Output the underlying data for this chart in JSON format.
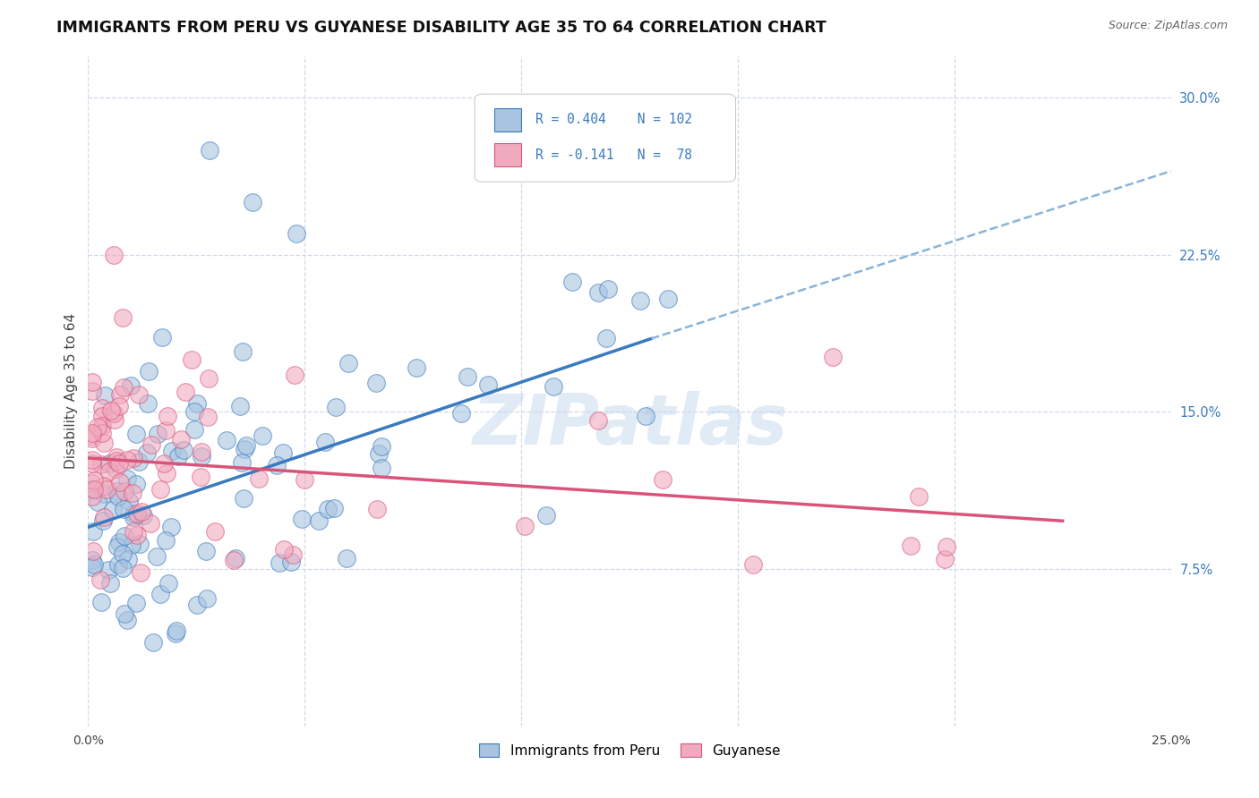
{
  "title": "IMMIGRANTS FROM PERU VS GUYANESE DISABILITY AGE 35 TO 64 CORRELATION CHART",
  "source": "Source: ZipAtlas.com",
  "ylabel": "Disability Age 35 to 64",
  "xlim": [
    0.0,
    0.25
  ],
  "ylim": [
    0.0,
    0.32
  ],
  "x_tick_positions": [
    0.0,
    0.05,
    0.1,
    0.15,
    0.2,
    0.25
  ],
  "x_tick_labels": [
    "0.0%",
    "",
    "",
    "",
    "",
    "25.0%"
  ],
  "y_ticks": [
    0.075,
    0.15,
    0.225,
    0.3
  ],
  "y_tick_labels": [
    "7.5%",
    "15.0%",
    "22.5%",
    "30.0%"
  ],
  "color_peru": "#a8c4e0",
  "color_guyanese": "#f0aabe",
  "color_peru_line": "#3a7abf",
  "color_guyanese_line": "#d9547a",
  "color_dashed_line": "#8ab4d9",
  "watermark": "ZIPatlas",
  "peru_line_x": [
    0.0,
    0.13
  ],
  "peru_line_y": [
    0.095,
    0.185
  ],
  "dashed_line_x": [
    0.13,
    0.25
  ],
  "dashed_line_y": [
    0.185,
    0.265
  ],
  "guyanese_line_x": [
    0.0,
    0.225
  ],
  "guyanese_line_y": [
    0.128,
    0.098
  ],
  "bg_color": "#ffffff",
  "grid_color": "#d0d8e8"
}
